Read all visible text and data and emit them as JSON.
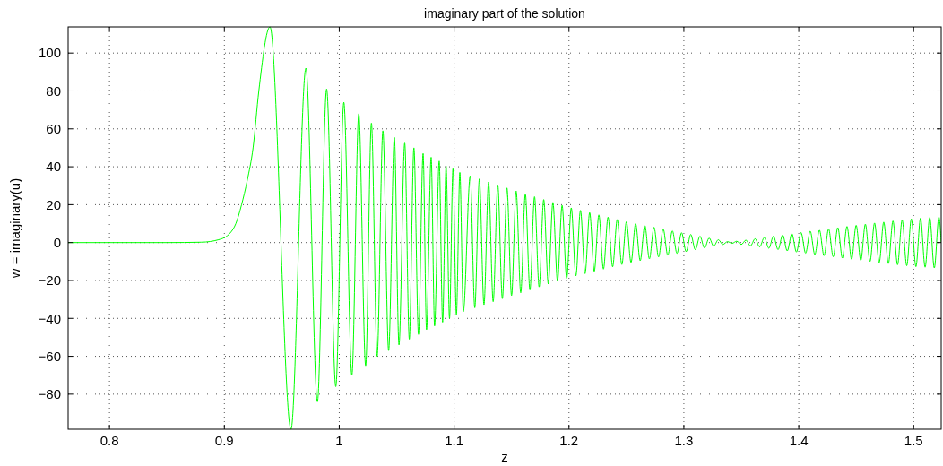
{
  "chart_data": {
    "type": "line",
    "title": "imaginary part of the solution",
    "xlabel": "z",
    "ylabel": "w = imaginary(u)",
    "xlim": [
      0.764,
      1.524
    ],
    "ylim": [
      -98.5,
      113.8
    ],
    "xticks": [
      0.8,
      0.9,
      1,
      1.1,
      1.2,
      1.3,
      1.4,
      1.5
    ],
    "yticks": [
      {
        "value": -80,
        "label": "−80"
      },
      {
        "value": -60,
        "label": "−60"
      },
      {
        "value": -40,
        "label": "−40"
      },
      {
        "value": -20,
        "label": "−20"
      },
      0,
      20,
      40,
      60,
      80,
      100
    ],
    "grid": true,
    "line_style": "solid",
    "marker": "none",
    "series": [
      {
        "color": "#00ff00",
        "x": [
          0.764,
          0.85,
          0.88,
          0.895,
          0.905,
          0.91,
          0.915,
          0.92,
          0.925,
          0.93,
          0.9397,
          0.958,
          0.971,
          0.981,
          0.989,
          0.997,
          1.004,
          1.011,
          1.017,
          1.023,
          1.028,
          1.033,
          1.038,
          1.043,
          1.048,
          1.052,
          1.057,
          1.061,
          1.065,
          1.069,
          1.073,
          1.076,
          1.08,
          1.083,
          1.087,
          1.09,
          1.093,
          1.096,
          1.099,
          1.102,
          1.105,
          1.108,
          1.114,
          1.118,
          1.122,
          1.126,
          1.13,
          1.134,
          1.138,
          1.142,
          1.146,
          1.15,
          1.154,
          1.158,
          1.162,
          1.166,
          1.17,
          1.174,
          1.178,
          1.182,
          1.186,
          1.19,
          1.194,
          1.198,
          1.202,
          1.206,
          1.21,
          1.214,
          1.218,
          1.222,
          1.226,
          1.23,
          1.234,
          1.238,
          1.242,
          1.246,
          1.25,
          1.254,
          1.258,
          1.262,
          1.266,
          1.27,
          1.274,
          1.278,
          1.282,
          1.286,
          1.29,
          1.294,
          1.298,
          1.302,
          1.306,
          1.31,
          1.314,
          1.318,
          1.322,
          1.326,
          1.33,
          1.334,
          1.338,
          1.342,
          1.346,
          1.35,
          1.354,
          1.358,
          1.362,
          1.366,
          1.37,
          1.374,
          1.378,
          1.382,
          1.386,
          1.39,
          1.394,
          1.398,
          1.402,
          1.406,
          1.41,
          1.414,
          1.418,
          1.422,
          1.426,
          1.43,
          1.434,
          1.438,
          1.442,
          1.446,
          1.45,
          1.454,
          1.458,
          1.462,
          1.466,
          1.47,
          1.474,
          1.478,
          1.482,
          1.486,
          1.49,
          1.494,
          1.498,
          1.502,
          1.506,
          1.51,
          1.514,
          1.518,
          1.522,
          1.524
        ],
        "values": [
          0,
          0,
          0.2,
          1.5,
          5,
          10,
          20,
          33,
          50,
          80,
          113.8,
          -98.5,
          92,
          -84,
          81,
          -76,
          74,
          -70,
          68,
          -65,
          63,
          -60,
          59,
          -57,
          55.5,
          -54,
          52.5,
          -51,
          50,
          -48.5,
          47,
          -46,
          45,
          -44,
          43,
          -42,
          40.5,
          -40,
          39,
          -38,
          37,
          -36.5,
          35.2,
          -34.4,
          33.6,
          -32.8,
          32,
          -31.2,
          30.4,
          -29.6,
          28.8,
          -28,
          27.2,
          -26.5,
          25.7,
          -25,
          24.2,
          -23.4,
          22.7,
          -21.9,
          21.2,
          -20.4,
          19.6,
          -18.9,
          18.3,
          -17.6,
          17,
          -16.4,
          15.8,
          -15.2,
          14.6,
          -14,
          13.4,
          -12.8,
          12.2,
          -11.6,
          11,
          -10.5,
          10,
          -9.6,
          9.1,
          -8.6,
          8.1,
          -7.6,
          7.2,
          -6.7,
          6.2,
          -5.7,
          5.2,
          -4.8,
          4.3,
          -3.8,
          3.4,
          -2.9,
          2.4,
          -1.9,
          1.5,
          -1,
          0.5,
          -0.4,
          0.7,
          -1,
          1.3,
          -1.7,
          2,
          -2.3,
          2.7,
          -3,
          3.4,
          -3.7,
          4,
          -4.4,
          4.7,
          -5,
          5.3,
          -5.6,
          6,
          -6.3,
          6.6,
          -6.9,
          7.2,
          -7.5,
          7.9,
          -8.2,
          8.5,
          -8.8,
          9.1,
          -9.4,
          9.7,
          -10,
          10.3,
          -10.6,
          10.8,
          -11.1,
          11.4,
          -11.7,
          11.9,
          -12.2,
          12.5,
          -12.7,
          12.9,
          -13,
          13.2,
          -13.4,
          13.5,
          0
        ]
      }
    ]
  }
}
